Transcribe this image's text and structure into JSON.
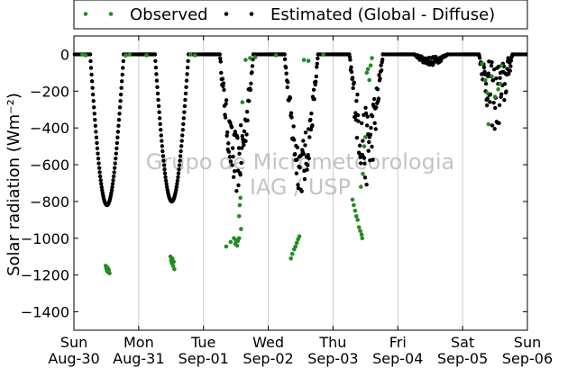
{
  "chart_data": {
    "type": "scatter",
    "ylabel": "Solar radiation (Wm⁻²)",
    "ylim": [
      -1500,
      100
    ],
    "yticks": [
      0,
      -200,
      -400,
      -600,
      -800,
      -1000,
      -1200,
      -1400
    ],
    "xlim_days": [
      0,
      7
    ],
    "xticks": [
      {
        "day": 0,
        "label1": "Sun",
        "label2": "Aug-30"
      },
      {
        "day": 1,
        "label1": "Mon",
        "label2": "Aug-31"
      },
      {
        "day": 2,
        "label1": "Tue",
        "label2": "Sep-01"
      },
      {
        "day": 3,
        "label1": "Wed",
        "label2": "Sep-02"
      },
      {
        "day": 4,
        "label1": "Thu",
        "label2": "Sep-03"
      },
      {
        "day": 5,
        "label1": "Fri",
        "label2": "Sep-04"
      },
      {
        "day": 6,
        "label1": "Sat",
        "label2": "Sep-05"
      },
      {
        "day": 7,
        "label1": "Sun",
        "label2": "Sep-06"
      }
    ],
    "grid": "vertical",
    "legend_placement": "top",
    "watermark": [
      "Grupo de Micrometeorologia",
      "IAG / USP"
    ],
    "series": [
      {
        "name": "Observed",
        "color": "#228b22",
        "marker": "dot",
        "points": [
          [
            0.49,
            -1150
          ],
          [
            0.5,
            -1165
          ],
          [
            0.51,
            -1178
          ],
          [
            0.52,
            -1160
          ],
          [
            0.53,
            -1185
          ],
          [
            0.54,
            -1172
          ],
          [
            0.55,
            -1190
          ],
          [
            0.13,
            0
          ],
          [
            0.18,
            -5
          ],
          [
            0.8,
            -5
          ],
          [
            0.86,
            0
          ],
          [
            1.49,
            -1100
          ],
          [
            1.5,
            -1120
          ],
          [
            1.51,
            -1135
          ],
          [
            1.52,
            -1110
          ],
          [
            1.53,
            -1150
          ],
          [
            1.54,
            -1128
          ],
          [
            1.55,
            -1168
          ],
          [
            1.12,
            -5
          ],
          [
            1.8,
            0
          ],
          [
            1.87,
            -5
          ],
          [
            2.35,
            -1045
          ],
          [
            2.42,
            -1020
          ],
          [
            2.47,
            -1000
          ],
          [
            2.49,
            -1030
          ],
          [
            2.5,
            -1010
          ],
          [
            2.52,
            -1040
          ],
          [
            2.53,
            -1015
          ],
          [
            2.55,
            -1000
          ],
          [
            2.55,
            -880
          ],
          [
            2.56,
            -820
          ],
          [
            2.57,
            -780
          ],
          [
            2.58,
            -950
          ],
          [
            2.6,
            -260
          ],
          [
            2.65,
            -30
          ],
          [
            2.72,
            -20
          ],
          [
            2.8,
            -15
          ],
          [
            3.35,
            -1110
          ],
          [
            3.37,
            -1085
          ],
          [
            3.4,
            -1060
          ],
          [
            3.42,
            -1045
          ],
          [
            3.44,
            -1025
          ],
          [
            3.46,
            -1005
          ],
          [
            3.48,
            -990
          ],
          [
            3.55,
            -30
          ],
          [
            3.62,
            -35
          ],
          [
            3.12,
            -5
          ],
          [
            3.85,
            0
          ],
          [
            4.3,
            -790
          ],
          [
            4.32,
            -820
          ],
          [
            4.34,
            -850
          ],
          [
            4.36,
            -880
          ],
          [
            4.38,
            -900
          ],
          [
            4.4,
            -940
          ],
          [
            4.42,
            -960
          ],
          [
            4.44,
            -980
          ],
          [
            4.45,
            -1000
          ],
          [
            4.43,
            -720
          ],
          [
            4.46,
            -650
          ],
          [
            4.48,
            -500
          ],
          [
            4.5,
            -450
          ],
          [
            4.52,
            -100
          ],
          [
            4.54,
            -80
          ],
          [
            4.56,
            -140
          ],
          [
            4.58,
            -60
          ],
          [
            4.6,
            -20
          ],
          [
            6.3,
            -50
          ],
          [
            6.35,
            -140
          ],
          [
            6.38,
            -210
          ],
          [
            6.4,
            -380
          ],
          [
            6.45,
            -120
          ],
          [
            6.5,
            -230
          ],
          [
            6.55,
            -190
          ],
          [
            6.58,
            -160
          ],
          [
            6.6,
            -60
          ]
        ]
      },
      {
        "name": "Estimated (Global - Diffuse)",
        "color": "#000000",
        "marker": "dot",
        "days": [
          {
            "start": 0.25,
            "end": 0.77,
            "peak": -820,
            "noise": 0.0
          },
          {
            "start": 1.25,
            "end": 1.77,
            "peak": -800,
            "noise": 0.0
          },
          {
            "start": 2.25,
            "end": 2.77,
            "peak": -760,
            "noise": 0.45
          },
          {
            "start": 3.25,
            "end": 3.77,
            "peak": -760,
            "noise": 0.4
          },
          {
            "start": 4.25,
            "end": 4.77,
            "peak": -720,
            "noise": 0.6
          },
          {
            "start": 5.25,
            "end": 5.77,
            "peak": -60,
            "noise": 0.8
          },
          {
            "start": 6.25,
            "end": 6.77,
            "peak": -420,
            "noise": 0.9
          }
        ]
      }
    ]
  }
}
